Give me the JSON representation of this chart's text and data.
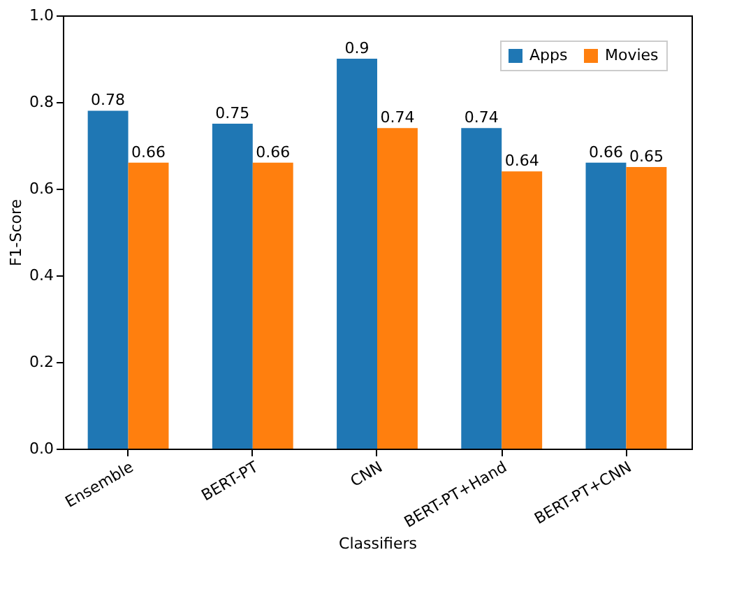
{
  "chart_data": {
    "type": "bar",
    "xlabel": "Classifiers",
    "ylabel": "F1-Score",
    "categories": [
      "Ensemble",
      "BERT-PT",
      "CNN",
      "BERT-PT+Hand",
      "BERT-PT+CNN"
    ],
    "series": [
      {
        "name": "Apps",
        "color": "#1f77b4",
        "values": [
          0.78,
          0.75,
          0.9,
          0.74,
          0.66
        ]
      },
      {
        "name": "Movies",
        "color": "#ff7f0e",
        "values": [
          0.66,
          0.66,
          0.74,
          0.64,
          0.65
        ]
      }
    ],
    "ylim": [
      0,
      1.0
    ],
    "yticks": [
      {
        "value": 0,
        "label": "0.0"
      },
      0.2,
      0.4,
      0.6,
      0.8,
      {
        "value": 1,
        "label": "1.0"
      }
    ],
    "grid": false,
    "legend": "top right",
    "data_labels": true
  }
}
